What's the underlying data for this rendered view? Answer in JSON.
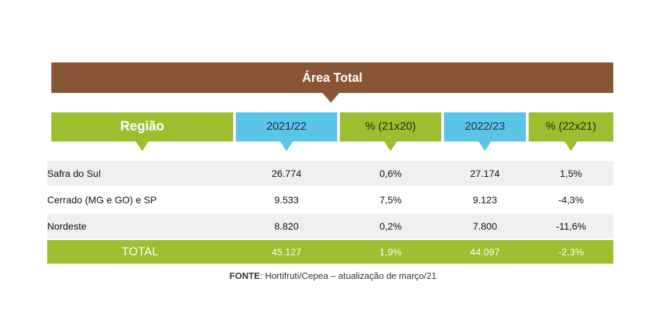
{
  "title": "Área Total",
  "columns": [
    "Região",
    "2021/22",
    "% (21x20)",
    "2022/23",
    "% (22x21)"
  ],
  "rows": [
    {
      "region": "Safra do Sul",
      "v2021": "26.774",
      "p2120": "0,6%",
      "v2022": "27.174",
      "p2221": "1,5%"
    },
    {
      "region": "Cerrado (MG e GO) e SP",
      "v2021": "9.533",
      "p2120": "7,5%",
      "v2022": "9.123",
      "p2221": "-4,3%"
    },
    {
      "region": "Nordeste",
      "v2021": "8.820",
      "p2120": "0,2%",
      "v2022": "7.800",
      "p2221": "-11,6%"
    }
  ],
  "total": {
    "label": "TOTAL",
    "v2021": "45.127",
    "p2120": "1,9%",
    "v2022": "44.097",
    "p2221": "-2,3%"
  },
  "source": {
    "label": "FONTE",
    "text": ": Hortifruti/Cepea – atualização de março/21"
  },
  "colors": {
    "banner": "#8a5532",
    "green": "#9cbf2f",
    "blue": "#5bc5e8",
    "row_shade": "#efefef"
  }
}
